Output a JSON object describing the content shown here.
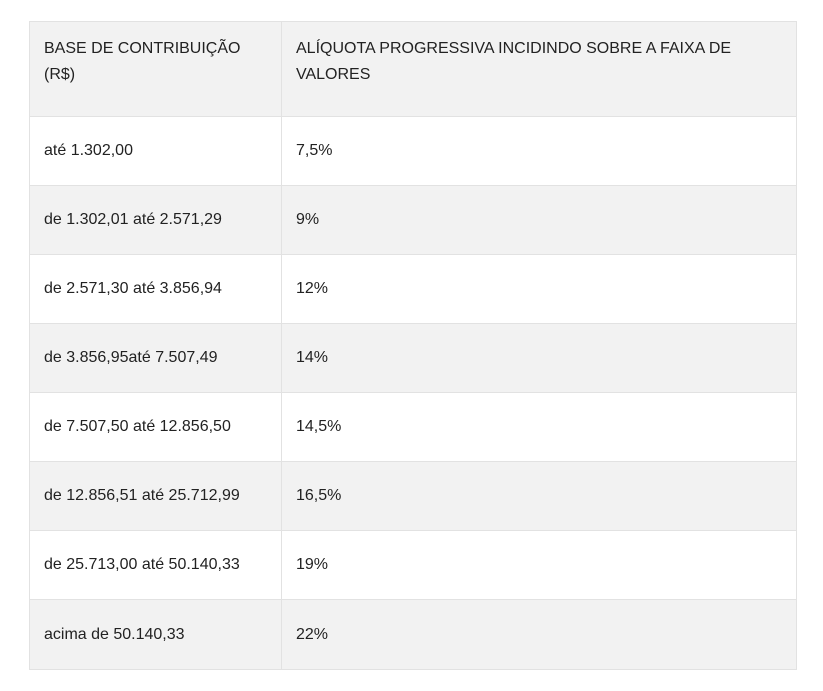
{
  "table": {
    "headers": [
      "BASE DE CONTRIBUIÇÃO (R$)",
      "ALÍQUOTA PROGRESSIVA INCIDINDO SOBRE A FAIXA DE VALORES"
    ],
    "rows": [
      [
        "até 1.302,00",
        "7,5%"
      ],
      [
        "de 1.302,01 até 2.571,29",
        "9%"
      ],
      [
        "de 2.571,30 até 3.856,94",
        "12%"
      ],
      [
        "de 3.856,95até 7.507,49",
        "14%"
      ],
      [
        "de 7.507,50 até 12.856,50",
        "14,5%"
      ],
      [
        "de 12.856,51 até 25.712,99",
        "16,5%"
      ],
      [
        "de 25.713,00 até 50.140,33",
        "19%"
      ],
      [
        "acima de 50.140,33",
        "22%"
      ]
    ]
  },
  "colors": {
    "header_bg": "#f2f2f2",
    "stripe_bg": "#f2f2f2",
    "row_bg": "#ffffff",
    "border": "#e2e2e2",
    "text": "#222222"
  }
}
